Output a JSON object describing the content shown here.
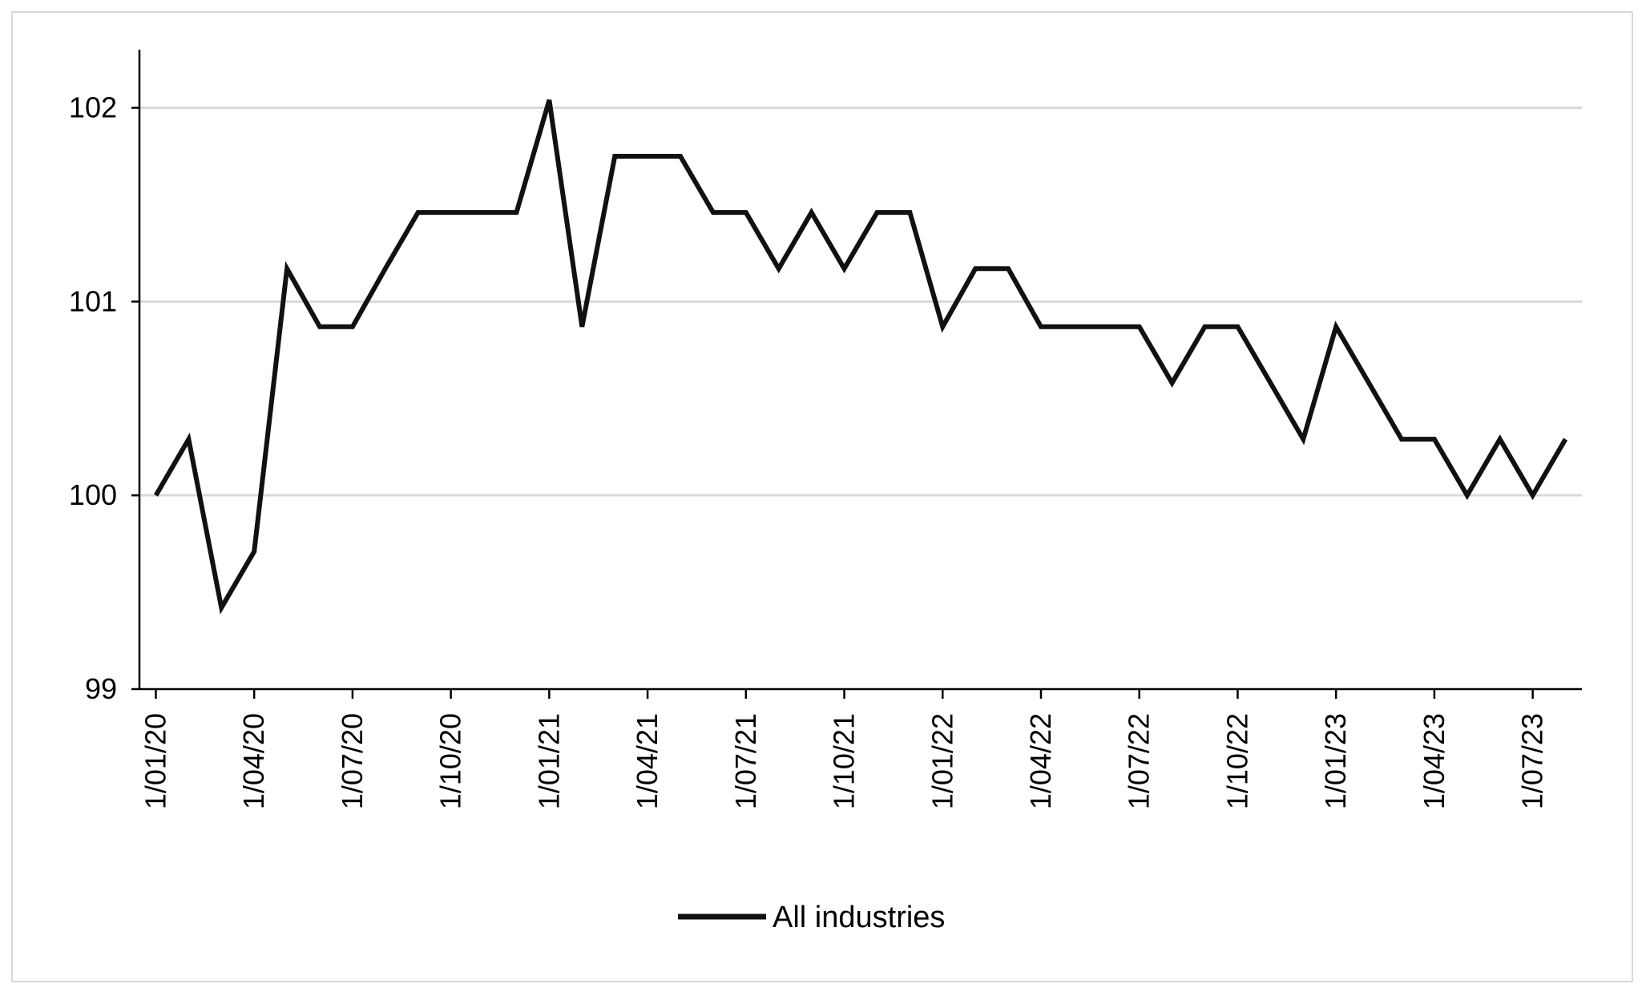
{
  "chart_data": {
    "type": "line",
    "title": "",
    "xlabel": "",
    "ylabel": "",
    "ylim": [
      99,
      102.3
    ],
    "yticks": [
      99,
      100,
      101,
      102
    ],
    "grid": true,
    "legend_position": "bottom",
    "x_tick_labels": [
      "1/01/20",
      "1/04/20",
      "1/07/20",
      "1/10/20",
      "1/01/21",
      "1/04/21",
      "1/07/21",
      "1/10/21",
      "1/01/22",
      "1/04/22",
      "1/07/22",
      "1/10/22",
      "1/01/23",
      "1/04/23",
      "1/07/23"
    ],
    "x": [
      "2020-01",
      "2020-02",
      "2020-03",
      "2020-04",
      "2020-05",
      "2020-06",
      "2020-07",
      "2020-08",
      "2020-09",
      "2020-10",
      "2020-11",
      "2020-12",
      "2021-01",
      "2021-02",
      "2021-03",
      "2021-04",
      "2021-05",
      "2021-06",
      "2021-07",
      "2021-08",
      "2021-09",
      "2021-10",
      "2021-11",
      "2021-12",
      "2022-01",
      "2022-02",
      "2022-03",
      "2022-04",
      "2022-05",
      "2022-06",
      "2022-07",
      "2022-08",
      "2022-09",
      "2022-10",
      "2022-11",
      "2022-12",
      "2023-01",
      "2023-02",
      "2023-03",
      "2023-04",
      "2023-05",
      "2023-06",
      "2023-07",
      "2023-08"
    ],
    "series": [
      {
        "name": "All industries",
        "color": "#111111",
        "values": [
          100.0,
          100.29,
          99.42,
          99.71,
          101.17,
          100.87,
          100.87,
          101.17,
          101.46,
          101.46,
          101.46,
          101.46,
          102.04,
          100.87,
          101.75,
          101.75,
          101.75,
          101.46,
          101.46,
          101.17,
          101.46,
          101.17,
          101.46,
          101.46,
          100.87,
          101.17,
          101.17,
          100.87,
          100.87,
          100.87,
          100.87,
          100.58,
          100.87,
          100.87,
          100.58,
          100.29,
          100.87,
          100.58,
          100.29,
          100.29,
          100.0,
          100.29,
          100.0,
          100.29
        ]
      }
    ]
  }
}
